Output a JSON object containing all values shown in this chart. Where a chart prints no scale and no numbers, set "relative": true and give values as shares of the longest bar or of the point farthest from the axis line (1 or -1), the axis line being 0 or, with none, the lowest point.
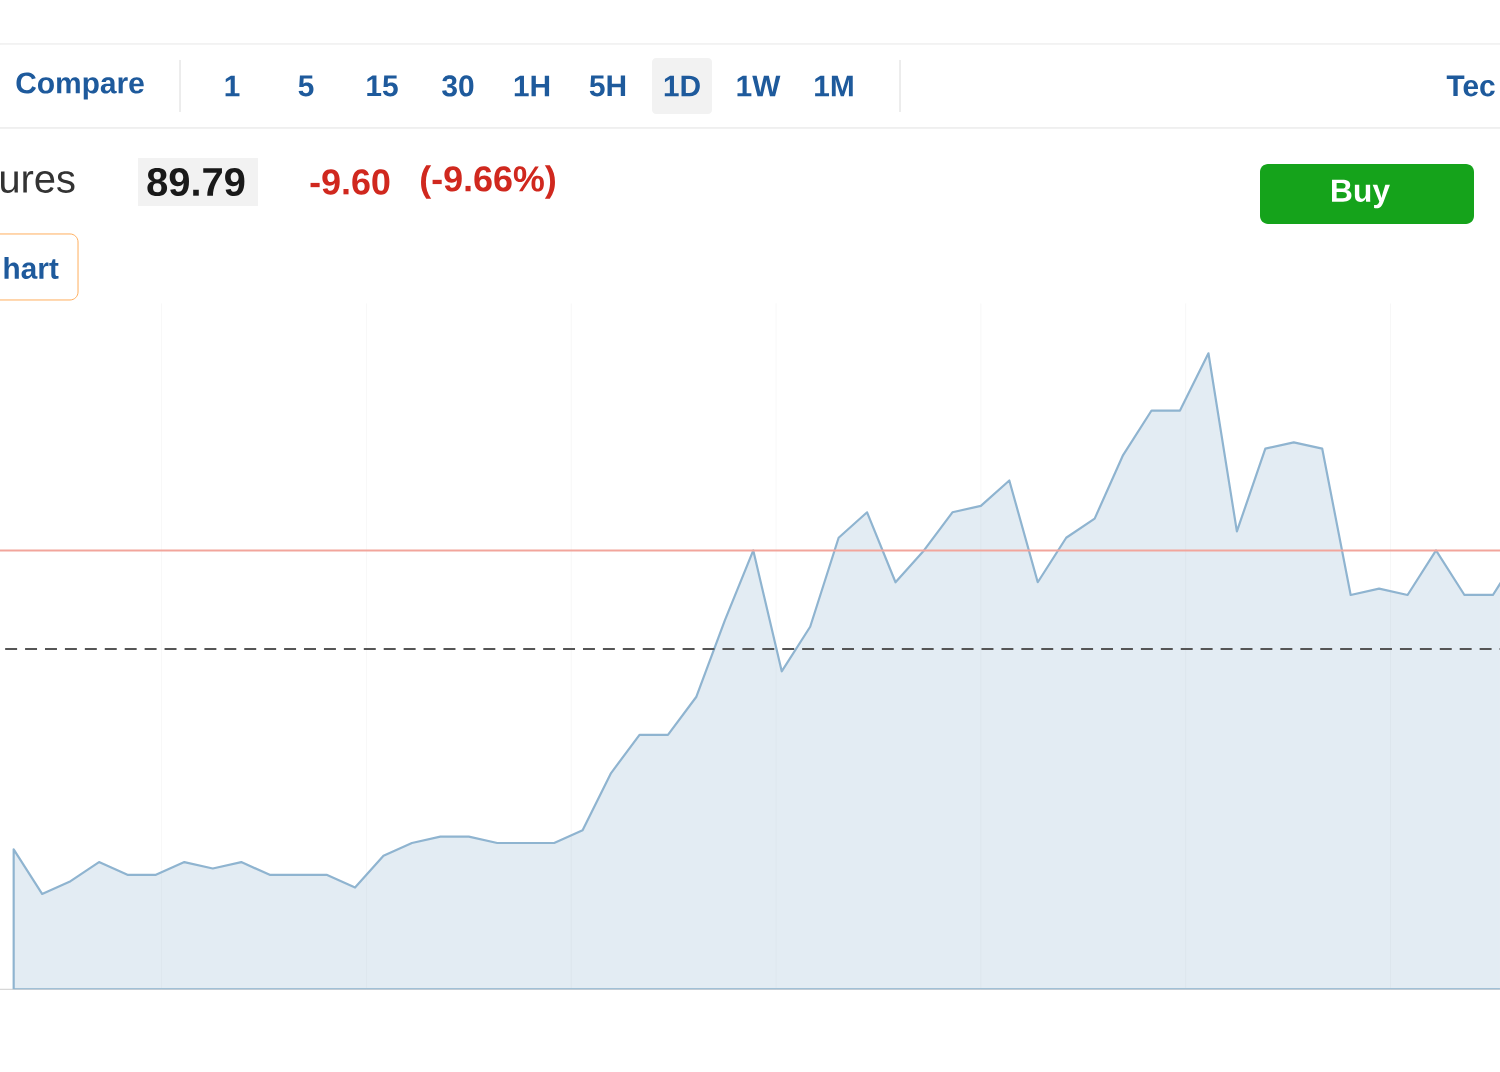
{
  "chart_data": {
    "type": "area",
    "relative": true,
    "categories": [
      null,
      null,
      null,
      null,
      null,
      null,
      null,
      null,
      null,
      null,
      null,
      null,
      null,
      null,
      null,
      null,
      null,
      null,
      null,
      null,
      null,
      null,
      null,
      null,
      null,
      null,
      null,
      null,
      null,
      null,
      null,
      null,
      null,
      null,
      null,
      null,
      null,
      null,
      null,
      null,
      null,
      null,
      null,
      null,
      null,
      null,
      null,
      null,
      null,
      null,
      null,
      null,
      null,
      null
    ],
    "series": [
      {
        "color": "#8fb4d0",
        "values": [
          0.22,
          0.15,
          0.17,
          0.2,
          0.18,
          0.18,
          0.2,
          0.19,
          0.2,
          0.18,
          0.18,
          0.18,
          0.16,
          0.21,
          0.23,
          0.24,
          0.24,
          0.23,
          0.23,
          0.23,
          0.25,
          0.34,
          0.4,
          0.4,
          0.46,
          0.58,
          0.69,
          0.5,
          0.57,
          0.71,
          0.75,
          0.64,
          0.69,
          0.75,
          0.76,
          0.8,
          0.64,
          0.71,
          0.74,
          0.84,
          0.91,
          0.91,
          1,
          0.72,
          0.85,
          0.86,
          0.85,
          0.62,
          0.63,
          0.62,
          0.69,
          0.62,
          0.62,
          0.69
        ]
      }
    ],
    "ref_lines": [
      {
        "axis": "y",
        "value": 0.69,
        "color": "#f2a59c",
        "line_style": "solid"
      },
      {
        "axis": "y",
        "value": 0.535,
        "color": "#555555",
        "line_style": "dashed"
      }
    ],
    "annotations": [
      "Compare",
      "1",
      "5",
      "15",
      "30",
      "1H",
      "5H",
      "1D",
      "1W",
      "1M",
      "Tec",
      "ures",
      "89.79",
      "-9.60",
      "(-9.66%)",
      "Buy",
      "hart"
    ]
  }
}
